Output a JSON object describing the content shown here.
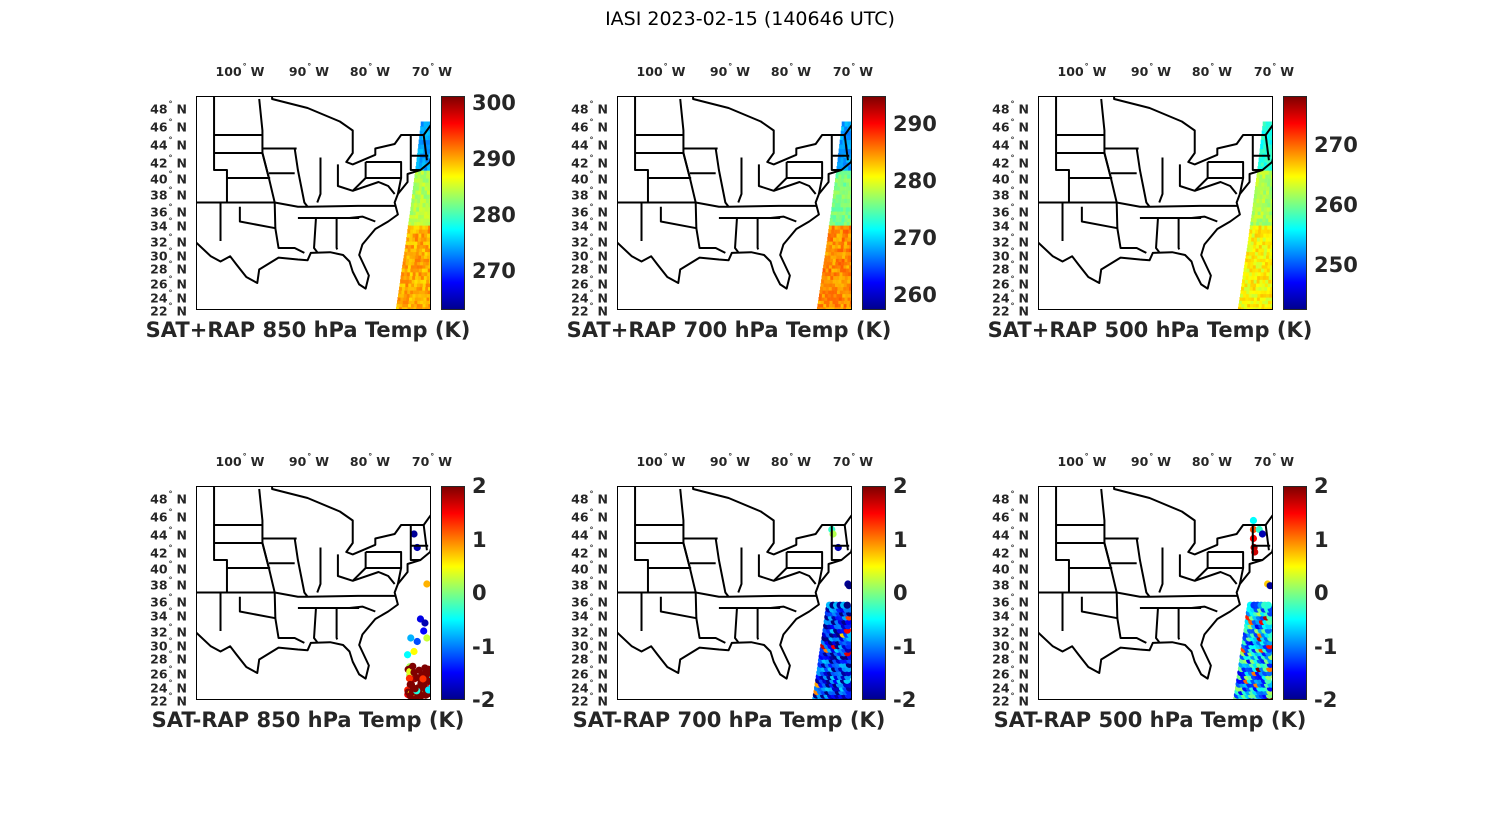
{
  "title": "IASI 2023-02-15 (140646 UTC)",
  "lon_labels": [
    "100",
    "90",
    "80",
    "70"
  ],
  "lon_suffix": "W",
  "lat_labels": [
    "48",
    "46",
    "44",
    "42",
    "40",
    "38",
    "36",
    "34",
    "32",
    "30",
    "28",
    "26",
    "24",
    "22"
  ],
  "lat_suffix": "N",
  "chart_data": [
    {
      "type": "map",
      "title": "SAT+RAP 850 hPa Temp (K)",
      "colormap": "jet",
      "clim": [
        263,
        301.3
      ],
      "colorbar_ticks": [
        "300",
        "290",
        "280",
        "270"
      ],
      "field": "sum",
      "level": "850"
    },
    {
      "type": "map",
      "title": "SAT+RAP 700 hPa Temp (K)",
      "colormap": "jet",
      "clim": [
        257.4,
        294.9
      ],
      "colorbar_ticks": [
        "290",
        "280",
        "270",
        "260"
      ],
      "field": "sum",
      "level": "700"
    },
    {
      "type": "map",
      "title": "SAT+RAP 500 hPa Temp (K)",
      "colormap": "jet",
      "clim": [
        242.5,
        278.2
      ],
      "colorbar_ticks": [
        "270",
        "260",
        "250"
      ],
      "field": "sum",
      "level": "500"
    },
    {
      "type": "map",
      "title": "SAT-RAP 850 hPa Temp (K)",
      "colormap": "jet",
      "clim": [
        -2,
        2
      ],
      "colorbar_ticks": [
        "2",
        "1",
        "0",
        "-1",
        "-2"
      ],
      "field": "diff",
      "level": "850"
    },
    {
      "type": "map",
      "title": "SAT-RAP 700 hPa Temp (K)",
      "colormap": "jet",
      "clim": [
        -2,
        2
      ],
      "colorbar_ticks": [
        "2",
        "1",
        "0",
        "-1",
        "-2"
      ],
      "field": "diff",
      "level": "700"
    },
    {
      "type": "map",
      "title": "SAT-RAP 500 hPa Temp (K)",
      "colormap": "jet",
      "clim": [
        -2,
        2
      ],
      "colorbar_ticks": [
        "2",
        "1",
        "0",
        "-1",
        "-2"
      ],
      "field": "diff",
      "level": "500"
    }
  ]
}
